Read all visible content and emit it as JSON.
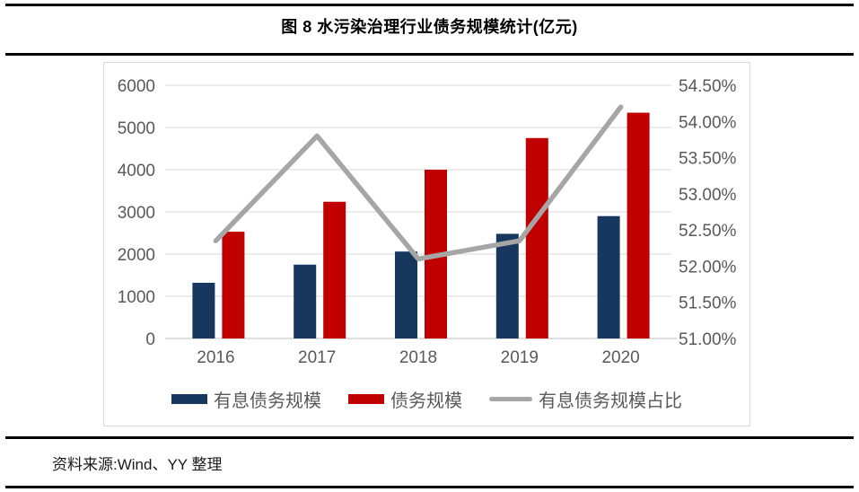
{
  "page": {
    "title": "图 8 水污染治理行业债务规模统计(亿元)",
    "source": "资料来源:Wind、YY 整理"
  },
  "colors": {
    "interest_debt_bar": "#17375E",
    "debt_bar": "#C00000",
    "ratio_line": "#A6A6A6",
    "gridline": "#D9D9D9",
    "axis_line": "#BFBFBF",
    "axis_text": "#595959",
    "rule": "#000000"
  },
  "chart_data": {
    "type": "bar",
    "subtype": "combo-bar-line",
    "title": "图 8 水污染治理行业债务规模统计(亿元)",
    "categories": [
      "2016",
      "2017",
      "2018",
      "2019",
      "2020"
    ],
    "series": [
      {
        "name": "有息债务规模",
        "type": "bar",
        "axis": "left",
        "color_key": "interest_debt_bar",
        "values": [
          1320,
          1750,
          2060,
          2480,
          2900
        ]
      },
      {
        "name": "债务规模",
        "type": "bar",
        "axis": "left",
        "color_key": "debt_bar",
        "values": [
          2530,
          3240,
          4000,
          4750,
          5350
        ]
      },
      {
        "name": "有息债务规模占比",
        "type": "line",
        "axis": "right",
        "color_key": "ratio_line",
        "values": [
          52.35,
          53.8,
          52.1,
          52.35,
          54.2
        ]
      }
    ],
    "left_axis": {
      "min": 0,
      "max": 6000,
      "step": 1000,
      "labels": [
        "0",
        "1000",
        "2000",
        "3000",
        "4000",
        "5000",
        "6000"
      ]
    },
    "right_axis": {
      "min": 51.0,
      "max": 54.5,
      "step": 0.5,
      "labels": [
        "51.00%",
        "51.50%",
        "52.00%",
        "52.50%",
        "53.00%",
        "53.50%",
        "54.00%",
        "54.50%"
      ]
    },
    "xlabel": "",
    "ylabel": "",
    "grid": true,
    "legend_position": "bottom"
  }
}
